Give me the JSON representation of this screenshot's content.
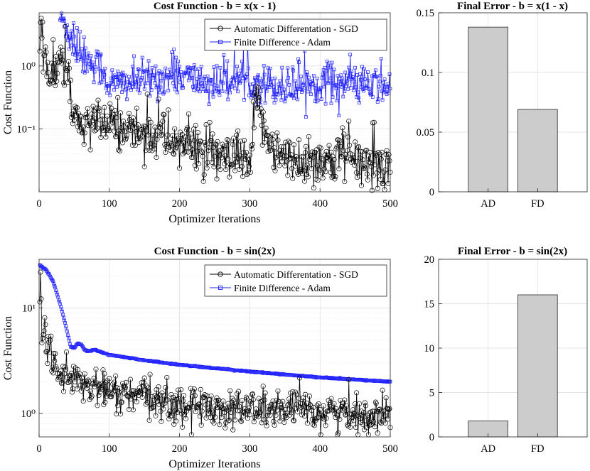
{
  "chart_data": [
    {
      "type": "line",
      "title": "Cost Function - b = x(x - 1)",
      "xlabel": "Optimizer Iterations",
      "ylabel": "Cost Function",
      "xlim": [
        0,
        500
      ],
      "ylim": [
        0.01,
        7
      ],
      "yscale": "log",
      "xticks": [
        0,
        100,
        200,
        300,
        400,
        500
      ],
      "yticks": [
        0.1,
        1
      ],
      "ytick_labels": [
        "10⁻¹",
        "10⁰"
      ],
      "grid": true,
      "legend_position": "top-right",
      "series": [
        {
          "name": "Automatic Differentation - SGD",
          "color": "#000000",
          "marker": "circle",
          "n": 500,
          "keypoints": [
            [
              1,
              3.6
            ],
            [
              5,
              2.4
            ],
            [
              10,
              1.0
            ],
            [
              20,
              0.6
            ],
            [
              30,
              1.3
            ],
            [
              40,
              0.9
            ],
            [
              48,
              0.15
            ],
            [
              60,
              0.11
            ],
            [
              100,
              0.11
            ],
            [
              150,
              0.09
            ],
            [
              200,
              0.06
            ],
            [
              250,
              0.035
            ],
            [
              300,
              0.025
            ],
            [
              310,
              0.25
            ],
            [
              330,
              0.06
            ],
            [
              350,
              0.03
            ],
            [
              400,
              0.03
            ],
            [
              450,
              0.03
            ],
            [
              500,
              0.025
            ]
          ]
        },
        {
          "name": "Finite Difference - Adam",
          "color": "#1f1fff",
          "marker": "square",
          "n": 500,
          "keypoints": [
            [
              30,
              6.0
            ],
            [
              40,
              4.0
            ],
            [
              50,
              2.0
            ],
            [
              60,
              1.5
            ],
            [
              90,
              0.9
            ],
            [
              100,
              0.5
            ],
            [
              150,
              0.6
            ],
            [
              200,
              0.7
            ],
            [
              250,
              0.5
            ],
            [
              300,
              0.6
            ],
            [
              350,
              0.45
            ],
            [
              400,
              0.55
            ],
            [
              450,
              0.5
            ],
            [
              500,
              0.45
            ]
          ]
        }
      ]
    },
    {
      "type": "bar",
      "title": "Final Error - b = x(1 - x)",
      "categories": [
        "AD",
        "FD"
      ],
      "values": [
        0.138,
        0.069
      ],
      "ylim": [
        0,
        0.15
      ],
      "yticks": [
        0,
        0.05,
        0.1,
        0.15
      ],
      "ytick_labels": [
        "0",
        "0.05",
        "0.1",
        "0.15"
      ],
      "bar_color": "#cccccc",
      "grid": true
    },
    {
      "type": "line",
      "title": "Cost Function - b = sin(2x)",
      "xlabel": "Optimizer Iterations",
      "ylabel": "Cost Function",
      "xlim": [
        0,
        500
      ],
      "ylim": [
        0.6,
        29
      ],
      "yscale": "log",
      "xticks": [
        0,
        100,
        200,
        300,
        400,
        500
      ],
      "yticks": [
        1,
        10
      ],
      "ytick_labels": [
        "10⁰",
        "10¹"
      ],
      "grid": true,
      "legend_position": "top-right",
      "series": [
        {
          "name": "Automatic Differentation - SGD",
          "color": "#000000",
          "marker": "circle",
          "n": 500,
          "keypoints": [
            [
              1,
              19
            ],
            [
              5,
              5
            ],
            [
              10,
              4.5
            ],
            [
              20,
              3.5
            ],
            [
              30,
              2.5
            ],
            [
              50,
              2.0
            ],
            [
              100,
              1.6
            ],
            [
              150,
              1.4
            ],
            [
              200,
              1.2
            ],
            [
              300,
              1.1
            ],
            [
              400,
              1.05
            ],
            [
              500,
              0.95
            ]
          ]
        },
        {
          "name": "Finite Difference - Adam",
          "color": "#1f1fff",
          "marker": "square",
          "n": 500,
          "keypoints": [
            [
              1,
              25.5
            ],
            [
              10,
              23
            ],
            [
              20,
              18
            ],
            [
              30,
              11
            ],
            [
              40,
              6
            ],
            [
              45,
              4.3
            ],
            [
              50,
              4.2
            ],
            [
              55,
              4.6
            ],
            [
              60,
              4.5
            ],
            [
              65,
              4.0
            ],
            [
              70,
              3.9
            ],
            [
              80,
              4.0
            ],
            [
              100,
              3.6
            ],
            [
              150,
              3.2
            ],
            [
              200,
              2.9
            ],
            [
              300,
              2.5
            ],
            [
              400,
              2.2
            ],
            [
              500,
              2.0
            ]
          ]
        }
      ]
    },
    {
      "type": "bar",
      "title": "Final Error - b = sin(2x)",
      "categories": [
        "AD",
        "FD"
      ],
      "values": [
        1.8,
        16.0
      ],
      "ylim": [
        0,
        20
      ],
      "yticks": [
        0,
        5,
        10,
        15,
        20
      ],
      "ytick_labels": [
        "0",
        "5",
        "10",
        "15",
        "20"
      ],
      "bar_color": "#cccccc",
      "grid": true
    }
  ]
}
